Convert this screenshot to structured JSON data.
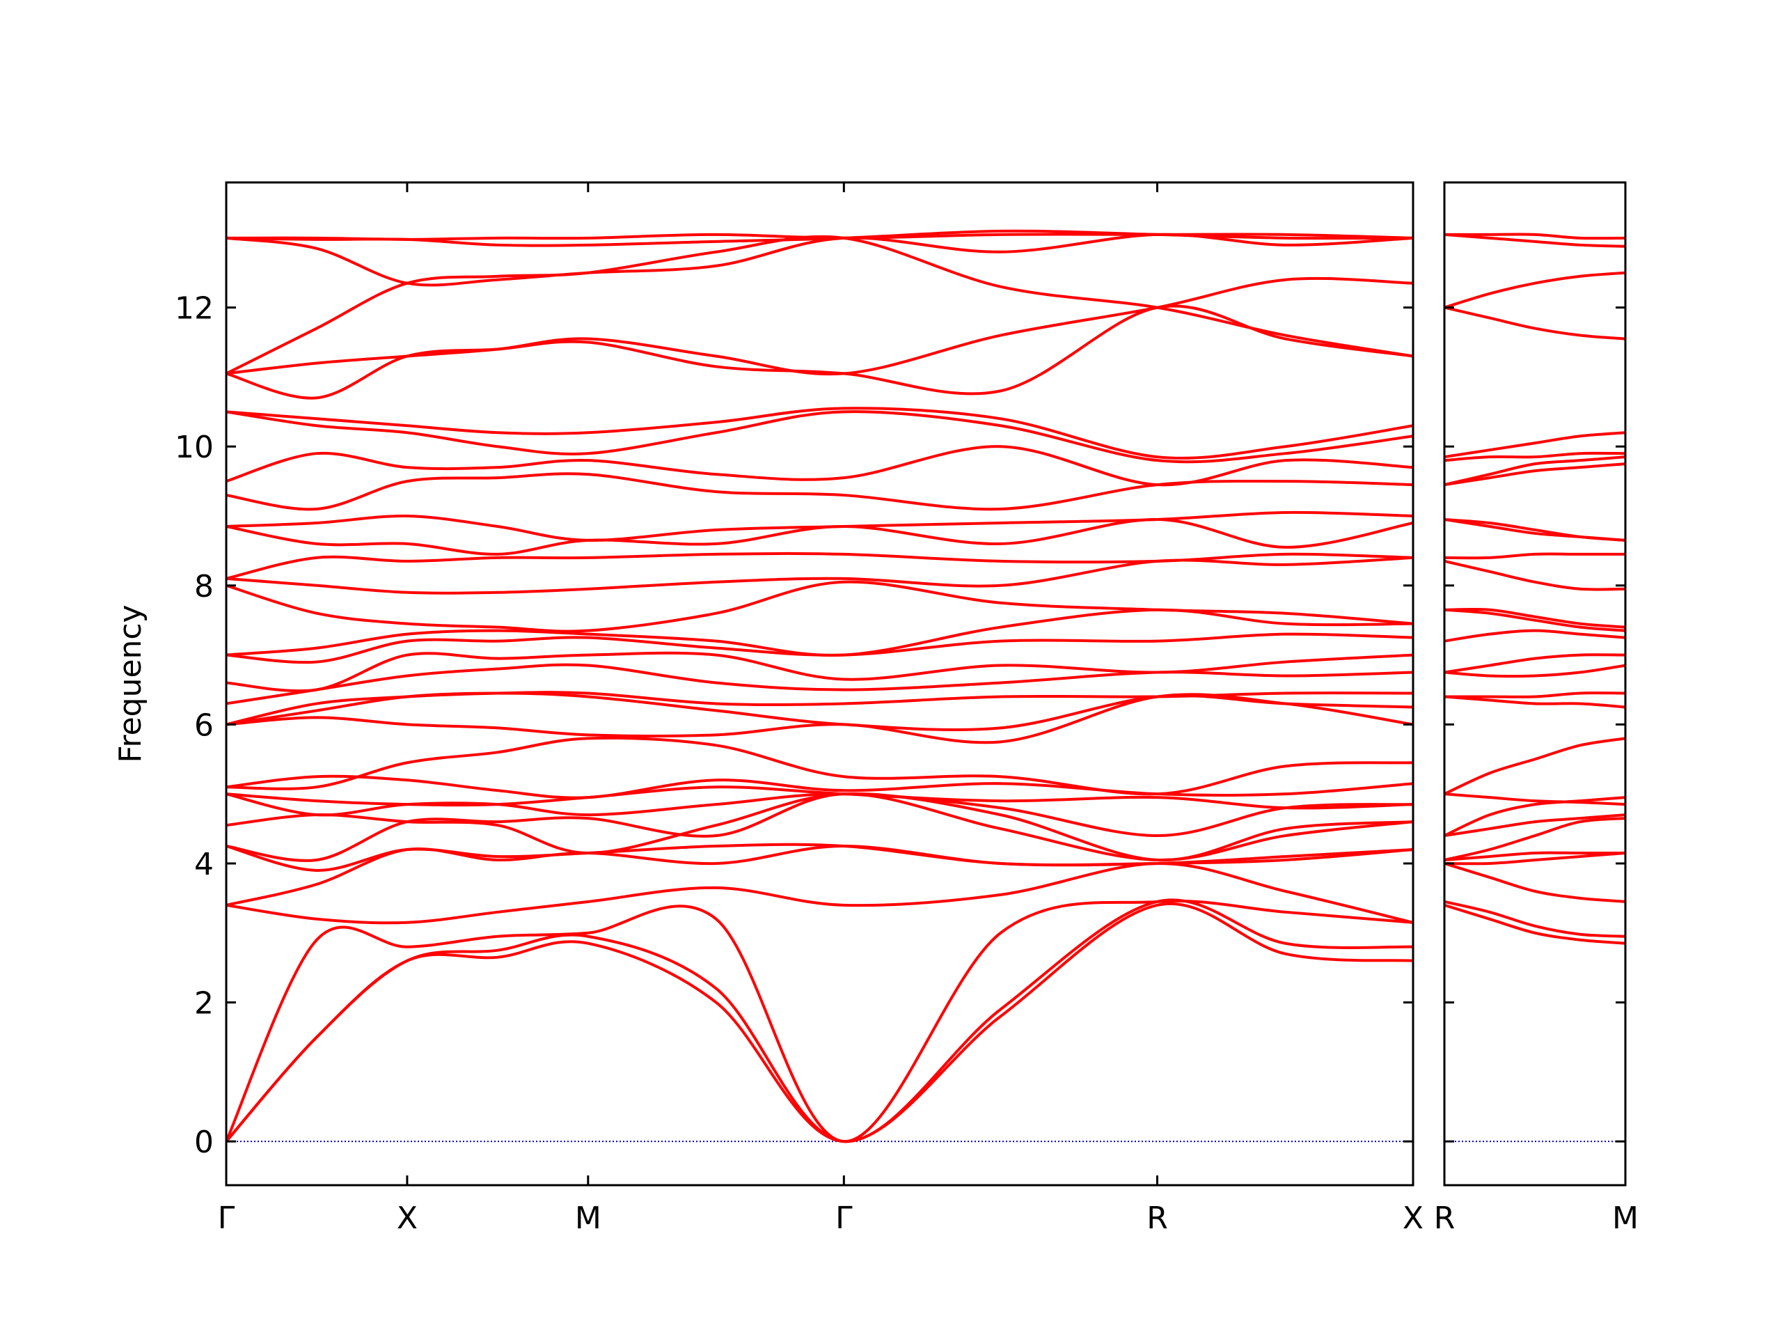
{
  "chart_data": [
    {
      "type": "line",
      "ylabel": "Frequency",
      "color": "#ff0000",
      "hline": 0,
      "hline_color": "#0000cc",
      "show_ytick_labels": true,
      "x": [
        0,
        0.25,
        0.5,
        0.75,
        1.0,
        1.354,
        1.707,
        2.14,
        2.573,
        2.927,
        3.28
      ],
      "xlim": [
        0,
        3.28
      ],
      "xticks": [
        {
          "value": 0,
          "label": "Γ"
        },
        {
          "value": 0.5,
          "label": "X"
        },
        {
          "value": 1.0,
          "label": "M"
        },
        {
          "value": 1.707,
          "label": "Γ"
        },
        {
          "value": 2.573,
          "label": "R"
        },
        {
          "value": 3.28,
          "label": "X"
        }
      ],
      "ylim": [
        -0.63,
        13.8
      ],
      "yticks": [
        0,
        2,
        4,
        6,
        8,
        10,
        12
      ],
      "series": [
        {
          "values": [
            0,
            1.5,
            2.6,
            2.65,
            2.85,
            2.0,
            0,
            1.8,
            3.4,
            2.7,
            2.6
          ]
        },
        {
          "values": [
            0,
            1.5,
            2.6,
            2.75,
            2.95,
            2.2,
            0,
            1.9,
            3.45,
            2.85,
            2.8
          ]
        },
        {
          "values": [
            0,
            2.9,
            2.8,
            2.95,
            3.0,
            3.2,
            0,
            3.0,
            3.45,
            3.3,
            3.15
          ]
        },
        {
          "values": [
            3.4,
            3.2,
            3.15,
            3.3,
            3.45,
            3.65,
            3.4,
            3.55,
            4.0,
            3.6,
            3.15
          ]
        },
        {
          "values": [
            3.4,
            3.7,
            4.2,
            4.05,
            4.15,
            4.0,
            4.25,
            4.0,
            4.0,
            4.05,
            4.2
          ]
        },
        {
          "values": [
            4.25,
            3.9,
            4.2,
            4.1,
            4.15,
            4.25,
            4.25,
            4.0,
            4.0,
            4.1,
            4.2
          ]
        },
        {
          "values": [
            4.25,
            4.05,
            4.6,
            4.6,
            4.65,
            4.4,
            5.0,
            4.5,
            4.05,
            4.4,
            4.6
          ]
        },
        {
          "values": [
            4.55,
            4.7,
            4.6,
            4.55,
            4.15,
            4.55,
            5.0,
            4.7,
            4.05,
            4.5,
            4.6
          ]
        },
        {
          "values": [
            5.0,
            4.7,
            4.85,
            4.85,
            4.7,
            4.85,
            5.0,
            4.8,
            4.4,
            4.8,
            4.85
          ]
        },
        {
          "values": [
            5.0,
            4.9,
            4.85,
            4.85,
            4.95,
            5.1,
            5.0,
            4.9,
            4.95,
            4.8,
            4.85
          ]
        },
        {
          "values": [
            5.1,
            5.25,
            5.2,
            5.05,
            4.95,
            5.2,
            5.05,
            5.15,
            5.0,
            5.0,
            5.15
          ]
        },
        {
          "values": [
            5.1,
            5.1,
            5.45,
            5.6,
            5.8,
            5.7,
            5.25,
            5.25,
            5.0,
            5.4,
            5.45
          ]
        },
        {
          "values": [
            6.0,
            6.1,
            6.0,
            5.95,
            5.85,
            5.85,
            6.0,
            5.75,
            6.4,
            6.3,
            6.0
          ]
        },
        {
          "values": [
            6.0,
            6.2,
            6.4,
            6.45,
            6.4,
            6.2,
            6.0,
            5.95,
            6.4,
            6.3,
            6.25
          ]
        },
        {
          "values": [
            6.0,
            6.3,
            6.4,
            6.45,
            6.45,
            6.3,
            6.3,
            6.4,
            6.4,
            6.45,
            6.45
          ]
        },
        {
          "values": [
            6.3,
            6.5,
            6.7,
            6.8,
            6.85,
            6.6,
            6.5,
            6.6,
            6.75,
            6.7,
            6.75
          ]
        },
        {
          "values": [
            6.6,
            6.5,
            7.0,
            6.95,
            7.0,
            7.0,
            6.65,
            6.85,
            6.75,
            6.9,
            7.0
          ]
        },
        {
          "values": [
            7.0,
            6.9,
            7.2,
            7.2,
            7.25,
            7.1,
            7.0,
            7.2,
            7.2,
            7.3,
            7.25
          ]
        },
        {
          "values": [
            7.0,
            7.1,
            7.3,
            7.35,
            7.3,
            7.2,
            7.0,
            7.4,
            7.65,
            7.45,
            7.45
          ]
        },
        {
          "values": [
            8.0,
            7.6,
            7.45,
            7.4,
            7.35,
            7.6,
            8.05,
            7.75,
            7.65,
            7.6,
            7.45
          ]
        },
        {
          "values": [
            8.1,
            8.0,
            7.9,
            7.9,
            7.95,
            8.05,
            8.1,
            8.0,
            8.35,
            8.3,
            8.4
          ]
        },
        {
          "values": [
            8.1,
            8.4,
            8.35,
            8.4,
            8.4,
            8.45,
            8.45,
            8.35,
            8.35,
            8.45,
            8.4
          ]
        },
        {
          "values": [
            8.85,
            8.6,
            8.6,
            8.45,
            8.65,
            8.6,
            8.85,
            8.6,
            8.95,
            8.55,
            8.9
          ]
        },
        {
          "values": [
            8.85,
            8.9,
            9.0,
            8.85,
            8.65,
            8.8,
            8.85,
            8.9,
            8.95,
            9.05,
            9.0
          ]
        },
        {
          "values": [
            9.3,
            9.1,
            9.5,
            9.55,
            9.6,
            9.35,
            9.3,
            9.1,
            9.45,
            9.5,
            9.45
          ]
        },
        {
          "values": [
            9.5,
            9.9,
            9.7,
            9.7,
            9.8,
            9.6,
            9.55,
            10.0,
            9.45,
            9.8,
            9.7
          ]
        },
        {
          "values": [
            10.5,
            10.3,
            10.2,
            10.0,
            9.9,
            10.2,
            10.5,
            10.3,
            9.8,
            9.9,
            10.15
          ]
        },
        {
          "values": [
            10.5,
            10.4,
            10.3,
            10.2,
            10.2,
            10.35,
            10.55,
            10.4,
            9.85,
            10.0,
            10.3
          ]
        },
        {
          "values": [
            11.05,
            10.7,
            11.3,
            11.4,
            11.5,
            11.15,
            11.05,
            10.8,
            12.0,
            11.55,
            11.3
          ]
        },
        {
          "values": [
            11.05,
            11.2,
            11.3,
            11.4,
            11.55,
            11.3,
            11.05,
            11.6,
            12.0,
            12.4,
            12.35
          ]
        },
        {
          "values": [
            11.05,
            11.7,
            12.35,
            12.45,
            12.5,
            12.8,
            13.0,
            12.3,
            12.0,
            11.6,
            11.3
          ]
        },
        {
          "values": [
            13.0,
            12.85,
            12.35,
            12.4,
            12.5,
            12.6,
            13.0,
            12.8,
            13.05,
            12.9,
            13.0
          ]
        },
        {
          "values": [
            13.0,
            12.98,
            12.98,
            12.9,
            12.9,
            12.95,
            13.0,
            13.1,
            13.05,
            13.0,
            13.0
          ]
        },
        {
          "values": [
            13.0,
            13.0,
            12.98,
            13.0,
            13.0,
            13.05,
            13.0,
            13.05,
            13.05,
            13.05,
            13.0
          ]
        }
      ]
    },
    {
      "type": "line",
      "color": "#ff0000",
      "hline": 0,
      "hline_color": "#0000cc",
      "show_ytick_labels": false,
      "x": [
        0,
        0.125,
        0.25,
        0.375,
        0.5
      ],
      "xlim": [
        0,
        0.5
      ],
      "xticks": [
        {
          "value": 0,
          "label": "R"
        },
        {
          "value": 0.5,
          "label": "M"
        }
      ],
      "ylim": [
        -0.63,
        13.8
      ],
      "yticks": [
        0,
        2,
        4,
        6,
        8,
        10,
        12
      ],
      "series": [
        {
          "values": [
            3.4,
            3.2,
            3.0,
            2.9,
            2.85
          ]
        },
        {
          "values": [
            3.45,
            3.3,
            3.1,
            2.98,
            2.95
          ]
        },
        {
          "values": [
            4.0,
            3.8,
            3.6,
            3.5,
            3.45
          ]
        },
        {
          "values": [
            4.0,
            4.0,
            4.05,
            4.1,
            4.15
          ]
        },
        {
          "values": [
            4.05,
            4.1,
            4.15,
            4.15,
            4.15
          ]
        },
        {
          "values": [
            4.05,
            4.2,
            4.4,
            4.6,
            4.65
          ]
        },
        {
          "values": [
            4.4,
            4.5,
            4.6,
            4.65,
            4.7
          ]
        },
        {
          "values": [
            4.4,
            4.7,
            4.85,
            4.9,
            4.95
          ]
        },
        {
          "values": [
            5.0,
            4.95,
            4.9,
            4.88,
            4.85
          ]
        },
        {
          "values": [
            5.0,
            5.3,
            5.5,
            5.7,
            5.8
          ]
        },
        {
          "values": [
            6.4,
            6.35,
            6.3,
            6.3,
            6.25
          ]
        },
        {
          "values": [
            6.4,
            6.4,
            6.4,
            6.45,
            6.45
          ]
        },
        {
          "values": [
            6.75,
            6.7,
            6.7,
            6.75,
            6.85
          ]
        },
        {
          "values": [
            6.75,
            6.85,
            6.95,
            7.0,
            7.0
          ]
        },
        {
          "values": [
            7.2,
            7.3,
            7.35,
            7.3,
            7.25
          ]
        },
        {
          "values": [
            7.65,
            7.6,
            7.5,
            7.4,
            7.35
          ]
        },
        {
          "values": [
            7.65,
            7.65,
            7.55,
            7.45,
            7.4
          ]
        },
        {
          "values": [
            8.35,
            8.2,
            8.05,
            7.95,
            7.95
          ]
        },
        {
          "values": [
            8.4,
            8.4,
            8.45,
            8.45,
            8.45
          ]
        },
        {
          "values": [
            8.95,
            8.85,
            8.75,
            8.7,
            8.65
          ]
        },
        {
          "values": [
            8.95,
            8.9,
            8.8,
            8.7,
            8.65
          ]
        },
        {
          "values": [
            9.45,
            9.55,
            9.65,
            9.7,
            9.75
          ]
        },
        {
          "values": [
            9.45,
            9.6,
            9.75,
            9.8,
            9.85
          ]
        },
        {
          "values": [
            9.8,
            9.85,
            9.85,
            9.9,
            9.9
          ]
        },
        {
          "values": [
            9.85,
            9.95,
            10.05,
            10.15,
            10.2
          ]
        },
        {
          "values": [
            12.0,
            11.85,
            11.7,
            11.6,
            11.55
          ]
        },
        {
          "values": [
            12.0,
            12.2,
            12.35,
            12.45,
            12.5
          ]
        },
        {
          "values": [
            13.05,
            13.0,
            12.95,
            12.9,
            12.88
          ]
        },
        {
          "values": [
            13.05,
            13.05,
            13.05,
            13.0,
            13.0
          ]
        }
      ]
    }
  ]
}
